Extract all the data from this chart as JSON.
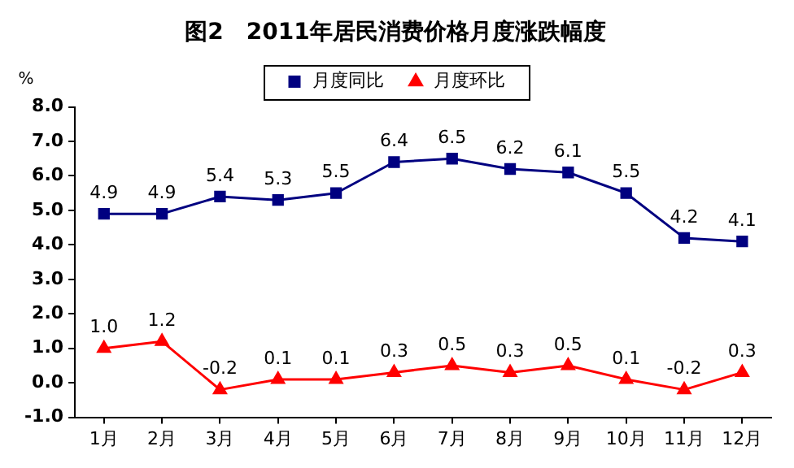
{
  "chart_data": {
    "type": "line",
    "title": "图2　2011年居民消费价格月度涨跌幅度",
    "ylabel": "%",
    "categories": [
      "1月",
      "2月",
      "3月",
      "4月",
      "5月",
      "6月",
      "7月",
      "8月",
      "9月",
      "10月",
      "11月",
      "12月"
    ],
    "series": [
      {
        "name": "月度同比",
        "color": "#000080",
        "marker": "square",
        "values": [
          4.9,
          4.9,
          5.4,
          5.3,
          5.5,
          6.4,
          6.5,
          6.2,
          6.1,
          5.5,
          4.2,
          4.1
        ],
        "value_labels": [
          "4.9",
          "4.9",
          "5.4",
          "5.3",
          "5.5",
          "6.4",
          "6.5",
          "6.2",
          "6.1",
          "5.5",
          "4.2",
          "4.1"
        ]
      },
      {
        "name": "月度环比",
        "color": "#ff0000",
        "marker": "triangle",
        "values": [
          1.0,
          1.2,
          -0.2,
          0.1,
          0.1,
          0.3,
          0.5,
          0.3,
          0.5,
          0.1,
          -0.2,
          0.3
        ],
        "value_labels": [
          "1.0",
          "1.2",
          "-0.2",
          "0.1",
          "0.1",
          "0.3",
          "0.5",
          "0.3",
          "0.5",
          "0.1",
          "-0.2",
          "0.3"
        ]
      }
    ],
    "ylim": [
      -1,
      8
    ],
    "yticks": [
      {
        "value": -1,
        "label": "-1.0"
      },
      {
        "value": 0,
        "label": "0.0"
      },
      {
        "value": 1,
        "label": "1.0"
      },
      {
        "value": 2,
        "label": "2.0"
      },
      {
        "value": 3,
        "label": "3.0"
      },
      {
        "value": 4,
        "label": "4.0"
      },
      {
        "value": 5,
        "label": "5.0"
      },
      {
        "value": 6,
        "label": "6.0"
      },
      {
        "value": 7,
        "label": "7.0"
      },
      {
        "value": 8,
        "label": "8.0"
      }
    ],
    "grid": false,
    "legend": "top",
    "line_style": "solid"
  }
}
